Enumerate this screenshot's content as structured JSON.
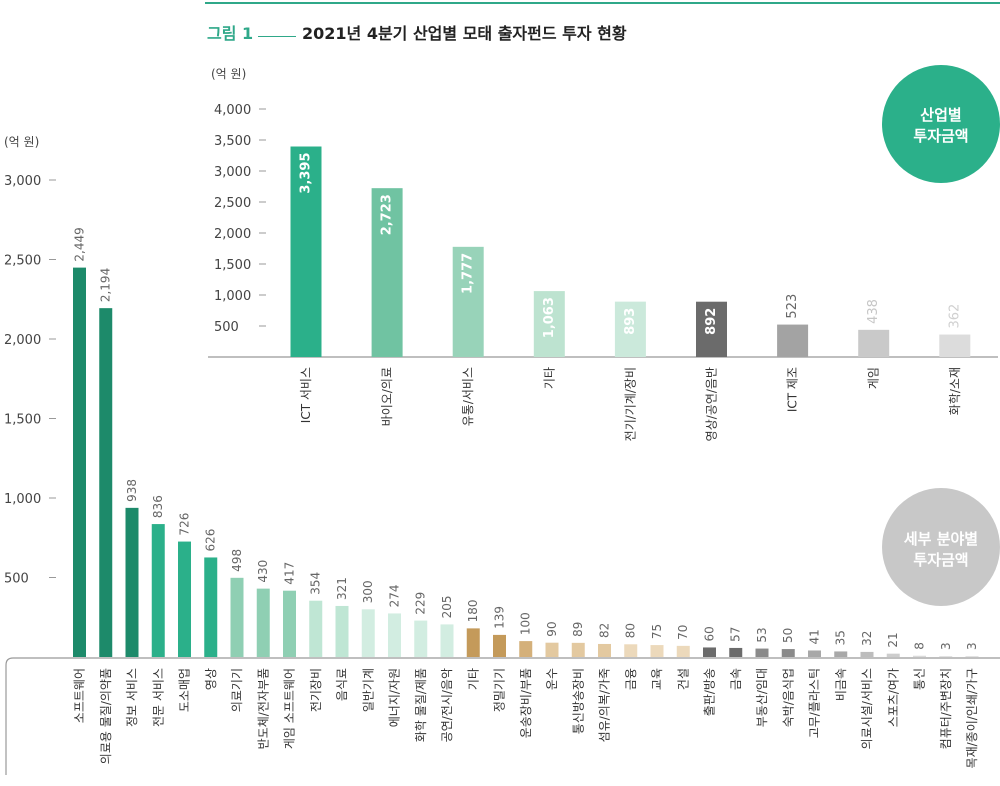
{
  "figure": {
    "label": "그림 1",
    "title": "2021년 4분기 산업별 모태 출자펀드 투자 현황"
  },
  "chart_data": [
    {
      "type": "bar",
      "ylabel": "(억 원)",
      "ylim": [
        0,
        4000
      ],
      "yticks": [
        "4,000",
        "3,500",
        "3,000",
        "2,500",
        "2,000",
        "1,500",
        "1,000",
        "500"
      ],
      "badge": [
        "산업별",
        "투자금액"
      ],
      "categories": [
        "ICT 서비스",
        "바이오/의료",
        "유통/서비스",
        "기타",
        "전기/기계/장비",
        "영상/공연/음반",
        "ICT 제조",
        "게임",
        "화학/소재"
      ],
      "values": [
        3395,
        2723,
        1777,
        1063,
        893,
        892,
        523,
        438,
        362
      ],
      "value_labels": [
        "3,395",
        "2,723",
        "1,777",
        "1,063",
        "893",
        "892",
        "523",
        "438",
        "362"
      ],
      "colors": [
        "#2bb08a",
        "#70c3a2",
        "#98d3b9",
        "#bde3d0",
        "#cbe9db",
        "#6b6b6b",
        "#a3a3a3",
        "#c9c9c9",
        "#dcdcdc"
      ],
      "label_colors": [
        "#ffffff",
        "#ffffff",
        "#ffffff",
        "#ffffff",
        "#ffffff",
        "#ffffff",
        "#666666",
        "#c6c6c6",
        "#d0d0d0"
      ]
    },
    {
      "type": "bar",
      "ylabel": "(억 원)",
      "ylim": [
        0,
        3000
      ],
      "yticks": [
        "3,000",
        "2,500",
        "2,000",
        "1,500",
        "1,000",
        "500"
      ],
      "badge": [
        "세부 분야별",
        "투자금액"
      ],
      "categories": [
        "소프트웨어",
        "의료용 물질/의약품",
        "정보 서비스",
        "전문 서비스",
        "도소매업",
        "영상",
        "의료기기",
        "반도체/전자부품",
        "게임 소프트웨어",
        "전기장비",
        "음식료",
        "일반기계",
        "에너지/자원",
        "화학 물질/제품",
        "공연/전시/음악",
        "기타",
        "정밀기기",
        "운송장비/부품",
        "운수",
        "통신방송장비",
        "섬유/의복/가죽",
        "금융",
        "교육",
        "건설",
        "출판/방송",
        "금속",
        "부동산/임대",
        "숙박/음식업",
        "고무/플라스틱",
        "비금속",
        "의료시설/서비스",
        "스포츠/여가",
        "통신",
        "컴퓨터/주변장치",
        "목재/종이/인쇄/가구"
      ],
      "values": [
        2449,
        2194,
        938,
        836,
        726,
        626,
        498,
        430,
        417,
        354,
        321,
        300,
        274,
        229,
        205,
        180,
        139,
        100,
        90,
        89,
        82,
        80,
        75,
        70,
        60,
        57,
        53,
        50,
        41,
        35,
        32,
        21,
        8,
        3,
        3
      ],
      "value_labels": [
        "2,449",
        "2,194",
        "938",
        "836",
        "726",
        "626",
        "498",
        "430",
        "417",
        "354",
        "321",
        "300",
        "274",
        "229",
        "205",
        "180",
        "139",
        "100",
        "90",
        "89",
        "82",
        "80",
        "75",
        "70",
        "60",
        "57",
        "53",
        "50",
        "41",
        "35",
        "32",
        "21",
        "8",
        "3",
        "3"
      ],
      "colors": [
        "#1d8a6a",
        "#1d8a6a",
        "#1d8a6a",
        "#2bb08a",
        "#2bb08a",
        "#2bb08a",
        "#8fcfb3",
        "#8fcfb3",
        "#8fcfb3",
        "#bfe6d4",
        "#bfe6d4",
        "#d2ede1",
        "#d2ede1",
        "#d2ede1",
        "#d2ede1",
        "#c49a5a",
        "#c49a5a",
        "#d4b07a",
        "#e3c9a0",
        "#e3c9a0",
        "#e3c9a0",
        "#ecd9bb",
        "#ecd9bb",
        "#ecd9bb",
        "#6b6b6b",
        "#6b6b6b",
        "#8a8a8a",
        "#8a8a8a",
        "#a8a8a8",
        "#a8a8a8",
        "#bdbdbd",
        "#cdcdcd",
        "#dadada",
        "#e2e2e2",
        "#e2e2e2"
      ]
    }
  ]
}
